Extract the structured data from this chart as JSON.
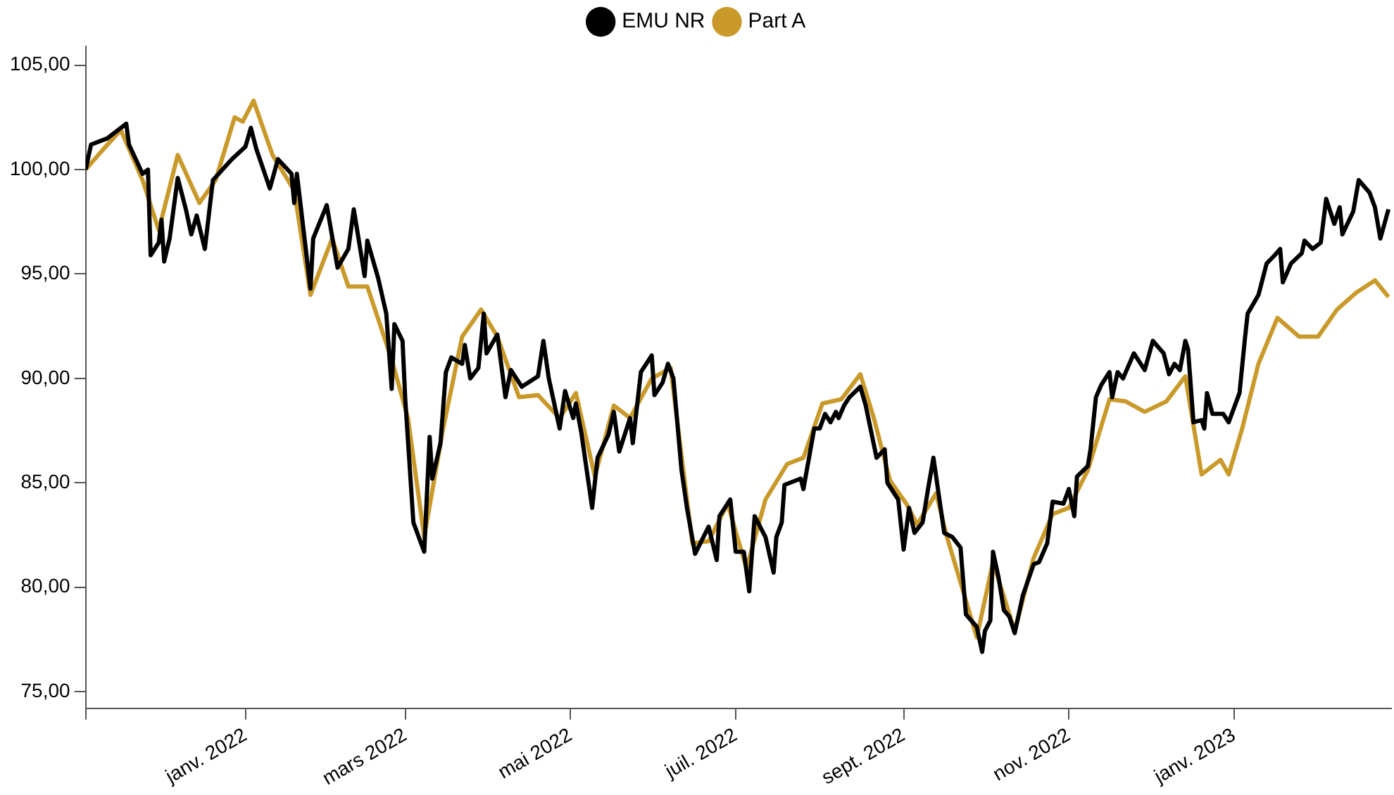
{
  "chart_data": {
    "type": "line",
    "legend": "top",
    "grid": false,
    "marker": "none",
    "line_style": "solid",
    "xlim": [
      "2021-11-03",
      "2023-02-28"
    ],
    "xticks": [
      {
        "value": "2021-11-03",
        "label": null
      },
      {
        "value": "2022-01",
        "label": "janv. 2022"
      },
      {
        "value": "2022-03",
        "label": "mars 2022"
      },
      {
        "value": "2022-05",
        "label": "mai 2022"
      },
      {
        "value": "2022-07",
        "label": "juil. 2022"
      },
      {
        "value": "2022-09",
        "label": "sept. 2022"
      },
      {
        "value": "2022-11",
        "label": "nov. 2022"
      },
      {
        "value": "2023-01",
        "label": "janv. 2023"
      }
    ],
    "ylim": [
      74.2,
      105.9
    ],
    "yticks": [
      {
        "value": 75,
        "label": "75,00"
      },
      {
        "value": 80,
        "label": "80,00"
      },
      {
        "value": 85,
        "label": "85,00"
      },
      {
        "value": 90,
        "label": "90,00"
      },
      {
        "value": 95,
        "label": "95,00"
      },
      {
        "value": 100,
        "label": "100,00"
      },
      {
        "value": 105,
        "label": "105,00"
      }
    ],
    "series": [
      {
        "name": "EMU NR",
        "color": "#000000",
        "x": [
          "2021-11-03",
          "2021-11-05",
          "2021-11-11",
          "2021-11-18",
          "2021-11-19",
          "2021-11-24",
          "2021-11-26",
          "2021-11-27",
          "2021-11-30",
          "2021-12-01",
          "2021-12-02",
          "2021-12-04",
          "2021-12-07",
          "2021-12-10",
          "2021-12-12",
          "2021-12-14",
          "2021-12-17",
          "2021-12-20",
          "2021-12-27",
          "2022-01-01",
          "2022-01-03",
          "2022-01-05",
          "2022-01-10",
          "2022-01-13",
          "2022-01-18",
          "2022-01-19",
          "2022-01-20",
          "2022-01-25",
          "2022-01-26",
          "2022-01-31",
          "2022-02-04",
          "2022-02-08",
          "2022-02-10",
          "2022-02-14",
          "2022-02-15",
          "2022-02-19",
          "2022-02-22",
          "2022-02-24",
          "2022-02-25",
          "2022-02-28",
          "2022-03-01",
          "2022-03-04",
          "2022-03-08",
          "2022-03-10",
          "2022-03-11",
          "2022-03-14",
          "2022-03-16",
          "2022-03-18",
          "2022-03-22",
          "2022-03-23",
          "2022-03-25",
          "2022-03-28",
          "2022-03-30",
          "2022-03-31",
          "2022-04-04",
          "2022-04-07",
          "2022-04-09",
          "2022-04-13",
          "2022-04-19",
          "2022-04-21",
          "2022-04-23",
          "2022-04-27",
          "2022-04-29",
          "2022-05-02",
          "2022-05-03",
          "2022-05-05",
          "2022-05-09",
          "2022-05-11",
          "2022-05-15",
          "2022-05-17",
          "2022-05-19",
          "2022-05-23",
          "2022-05-24",
          "2022-05-27",
          "2022-05-31",
          "2022-06-01",
          "2022-06-04",
          "2022-06-06",
          "2022-06-08",
          "2022-06-11",
          "2022-06-13",
          "2022-06-16",
          "2022-06-21",
          "2022-06-24",
          "2022-06-25",
          "2022-06-29",
          "2022-07-01",
          "2022-07-04",
          "2022-07-06",
          "2022-07-08",
          "2022-07-12",
          "2022-07-15",
          "2022-07-16",
          "2022-07-18",
          "2022-07-19",
          "2022-07-25",
          "2022-07-26",
          "2022-07-30",
          "2022-08-01",
          "2022-08-03",
          "2022-08-05",
          "2022-08-07",
          "2022-08-08",
          "2022-08-10",
          "2022-08-12",
          "2022-08-16",
          "2022-08-18",
          "2022-08-22",
          "2022-08-25",
          "2022-08-26",
          "2022-08-30",
          "2022-09-01",
          "2022-09-03",
          "2022-09-05",
          "2022-09-08",
          "2022-09-10",
          "2022-09-12",
          "2022-09-16",
          "2022-09-19",
          "2022-09-22",
          "2022-09-24",
          "2022-09-28",
          "2022-09-30",
          "2022-10-01",
          "2022-10-03",
          "2022-10-04",
          "2022-10-06",
          "2022-10-08",
          "2022-10-10",
          "2022-10-12",
          "2022-10-15",
          "2022-10-19",
          "2022-10-21",
          "2022-10-24",
          "2022-10-26",
          "2022-10-30",
          "2022-11-01",
          "2022-11-03",
          "2022-11-04",
          "2022-11-08",
          "2022-11-09",
          "2022-11-11",
          "2022-11-13",
          "2022-11-16",
          "2022-11-17",
          "2022-11-19",
          "2022-11-21",
          "2022-11-25",
          "2022-11-29",
          "2022-12-02",
          "2022-12-06",
          "2022-12-08",
          "2022-12-10",
          "2022-12-12",
          "2022-12-14",
          "2022-12-15",
          "2022-12-17",
          "2022-12-20",
          "2022-12-21",
          "2022-12-22",
          "2022-12-24",
          "2022-12-28",
          "2022-12-30",
          "2023-01-03",
          "2023-01-05",
          "2023-01-06",
          "2023-01-10",
          "2023-01-13",
          "2023-01-16",
          "2023-01-18",
          "2023-01-19",
          "2023-01-22",
          "2023-01-26",
          "2023-01-27",
          "2023-01-30",
          "2023-02-02",
          "2023-02-04",
          "2023-02-07",
          "2023-02-09",
          "2023-02-10",
          "2023-02-14",
          "2023-02-16",
          "2023-02-20",
          "2023-02-22",
          "2023-02-24",
          "2023-02-27"
        ],
        "values": [
          100.0,
          101.2,
          101.5,
          102.2,
          101.2,
          99.8,
          100.0,
          95.9,
          96.5,
          97.6,
          95.6,
          96.7,
          99.6,
          98.1,
          96.9,
          97.8,
          96.2,
          99.5,
          100.5,
          101.1,
          102.0,
          101.0,
          99.1,
          100.5,
          99.8,
          98.4,
          99.8,
          94.3,
          96.7,
          98.3,
          95.3,
          96.2,
          98.1,
          94.9,
          96.6,
          94.8,
          93.1,
          89.5,
          92.6,
          91.8,
          89.0,
          83.1,
          81.7,
          87.2,
          85.2,
          86.9,
          90.3,
          91.0,
          90.7,
          91.6,
          90.0,
          90.5,
          93.1,
          91.2,
          92.1,
          89.1,
          90.4,
          89.6,
          90.1,
          91.8,
          90.0,
          87.6,
          89.4,
          88.1,
          88.8,
          87.4,
          83.8,
          86.2,
          87.3,
          88.4,
          86.5,
          88.1,
          86.9,
          90.3,
          91.1,
          89.2,
          89.8,
          90.7,
          90.0,
          85.6,
          83.8,
          81.6,
          82.9,
          81.3,
          83.4,
          84.2,
          81.7,
          81.7,
          79.8,
          83.4,
          82.4,
          80.7,
          82.4,
          83.1,
          84.9,
          85.2,
          84.7,
          87.6,
          87.6,
          88.3,
          87.9,
          88.4,
          88.1,
          88.7,
          89.1,
          89.6,
          88.7,
          86.2,
          86.6,
          85.0,
          84.2,
          81.8,
          83.8,
          82.6,
          83.1,
          84.7,
          86.2,
          82.6,
          82.4,
          81.9,
          78.7,
          78.1,
          76.9,
          77.9,
          78.4,
          81.7,
          80.5,
          78.9,
          78.6,
          77.8,
          79.6,
          81.1,
          81.2,
          82.1,
          84.1,
          84.0,
          84.7,
          83.4,
          85.3,
          85.8,
          86.6,
          89.1,
          89.7,
          90.3,
          89.1,
          90.3,
          90.0,
          91.2,
          90.4,
          91.8,
          91.2,
          90.2,
          90.7,
          90.4,
          91.8,
          91.4,
          87.9,
          88.0,
          87.6,
          89.3,
          88.3,
          88.3,
          87.9,
          89.3,
          91.9,
          93.1,
          94.0,
          95.5,
          95.9,
          96.2,
          94.6,
          95.5,
          96.0,
          96.6,
          96.2,
          96.5,
          98.6,
          97.4,
          98.2,
          96.9,
          98.0,
          99.5,
          98.9,
          98.2,
          96.7,
          98.1
        ]
      },
      {
        "name": "Part A",
        "color": "#c9992a",
        "x": [
          "2021-11-03",
          "2021-11-09",
          "2021-11-16",
          "2021-11-24",
          "2021-11-30",
          "2021-12-07",
          "2021-12-15",
          "2021-12-21",
          "2021-12-28",
          "2021-12-31",
          "2022-01-04",
          "2022-01-11",
          "2022-01-19",
          "2022-01-25",
          "2022-02-02",
          "2022-02-08",
          "2022-02-15",
          "2022-02-24",
          "2022-03-02",
          "2022-03-08",
          "2022-03-15",
          "2022-03-22",
          "2022-03-29",
          "2022-04-04",
          "2022-04-12",
          "2022-04-19",
          "2022-04-27",
          "2022-05-03",
          "2022-05-10",
          "2022-05-17",
          "2022-05-23",
          "2022-05-31",
          "2022-06-07",
          "2022-06-15",
          "2022-06-21",
          "2022-06-28",
          "2022-07-05",
          "2022-07-12",
          "2022-07-20",
          "2022-07-26",
          "2022-08-02",
          "2022-08-09",
          "2022-08-16",
          "2022-08-21",
          "2022-08-27",
          "2022-09-02",
          "2022-09-06",
          "2022-09-13",
          "2022-09-17",
          "2022-09-23",
          "2022-09-28",
          "2022-10-04",
          "2022-10-12",
          "2022-10-19",
          "2022-10-26",
          "2022-11-01",
          "2022-11-08",
          "2022-11-16",
          "2022-11-22",
          "2022-11-29",
          "2022-12-07",
          "2022-12-14",
          "2022-12-20",
          "2022-12-27",
          "2022-12-30",
          "2023-01-04",
          "2023-01-10",
          "2023-01-17",
          "2023-01-25",
          "2023-02-01",
          "2023-02-08",
          "2023-02-15",
          "2023-02-22",
          "2023-02-27"
        ],
        "values": [
          100.0,
          100.9,
          101.9,
          99.5,
          97.1,
          100.7,
          98.4,
          99.5,
          102.5,
          102.3,
          103.3,
          100.7,
          99.0,
          94.0,
          96.7,
          94.4,
          94.4,
          90.9,
          88.1,
          82.4,
          87.6,
          92.0,
          93.3,
          92.0,
          89.1,
          89.2,
          88.1,
          89.3,
          85.3,
          88.7,
          88.1,
          90.0,
          90.5,
          82.1,
          82.2,
          84.0,
          80.9,
          84.2,
          85.9,
          86.2,
          88.8,
          89.0,
          90.2,
          88.1,
          85.1,
          84.0,
          83.0,
          84.5,
          82.4,
          79.8,
          77.6,
          81.2,
          77.9,
          81.4,
          83.5,
          83.8,
          85.6,
          89.0,
          88.9,
          88.4,
          88.9,
          90.1,
          85.4,
          86.1,
          85.4,
          87.6,
          90.7,
          92.9,
          92.0,
          92.0,
          93.3,
          94.1,
          94.7,
          93.9
        ]
      }
    ]
  }
}
